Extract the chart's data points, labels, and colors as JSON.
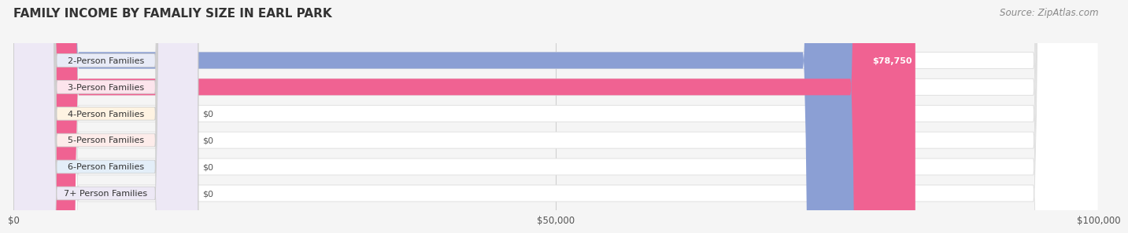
{
  "title": "FAMILY INCOME BY FAMALIY SIZE IN EARL PARK",
  "source": "Source: ZipAtlas.com",
  "categories": [
    "2-Person Families",
    "3-Person Families",
    "4-Person Families",
    "5-Person Families",
    "6-Person Families",
    "7+ Person Families"
  ],
  "values": [
    78750,
    83125,
    0,
    0,
    0,
    0
  ],
  "bar_colors": [
    "#8b9fd4",
    "#f06292",
    "#f5c28a",
    "#f4a9a8",
    "#a8c4e0",
    "#c4b0d8"
  ],
  "label_bg_colors": [
    "#e8ebf7",
    "#fce4ec",
    "#fef3e2",
    "#fdecea",
    "#e3eef8",
    "#ede8f5"
  ],
  "xlim": [
    0,
    100000
  ],
  "xticks": [
    0,
    50000,
    100000
  ],
  "xtick_labels": [
    "$0",
    "$50,000",
    "$100,000"
  ],
  "bar_height": 0.62,
  "background_color": "#f5f5f5",
  "title_fontsize": 11,
  "label_fontsize": 8,
  "value_fontsize": 8,
  "source_fontsize": 8.5
}
